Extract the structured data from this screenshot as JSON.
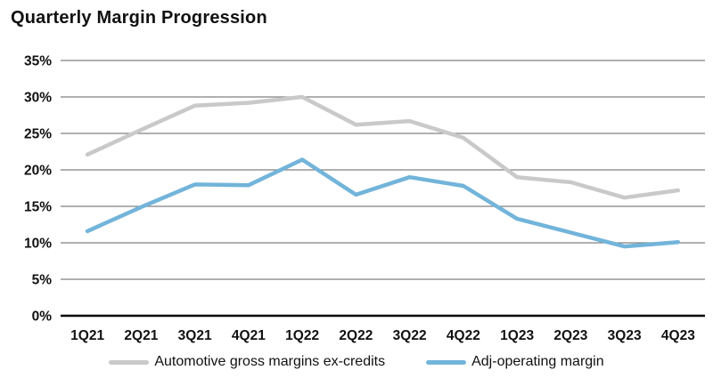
{
  "title": "Quarterly Margin Progression",
  "colors": {
    "background": "#ffffff",
    "text": "#111111",
    "gridline": "#808080",
    "axis_line": "#000000",
    "gray_series": "#c9c9c9",
    "blue_series": "#72b4da"
  },
  "legend": {
    "items": [
      {
        "label": "Automotive gross margins ex-credits",
        "color": "#c9c9c9"
      },
      {
        "label": "Adj-operating margin",
        "color": "#72b4da"
      }
    ]
  },
  "y_axis": {
    "tick_labels": [
      "35%",
      "30%",
      "25%",
      "20%",
      "15%",
      "10%",
      "5%",
      "0%"
    ]
  },
  "chart_data": {
    "type": "line",
    "title": "Quarterly Margin Progression",
    "categories": [
      "1Q21",
      "2Q21",
      "3Q21",
      "4Q21",
      "1Q22",
      "2Q22",
      "3Q22",
      "4Q22",
      "1Q23",
      "2Q23",
      "3Q23",
      "4Q23"
    ],
    "series": [
      {
        "name": "Automotive gross margins ex-credits",
        "color": "#c9c9c9",
        "values": [
          22.1,
          25.5,
          28.8,
          29.2,
          30.0,
          26.2,
          26.7,
          24.4,
          19.0,
          18.3,
          16.2,
          17.2
        ]
      },
      {
        "name": "Adj-operating margin",
        "color": "#72b4da",
        "values": [
          11.6,
          14.9,
          18.0,
          17.9,
          21.4,
          16.6,
          19.0,
          17.8,
          13.3,
          11.4,
          9.5,
          10.1
        ]
      }
    ],
    "xlabel": "",
    "ylabel": "",
    "ylim": [
      0,
      35
    ],
    "y_tick_step": 5,
    "y_tick_format": "percent",
    "grid": "horizontal",
    "legend_position": "bottom"
  }
}
